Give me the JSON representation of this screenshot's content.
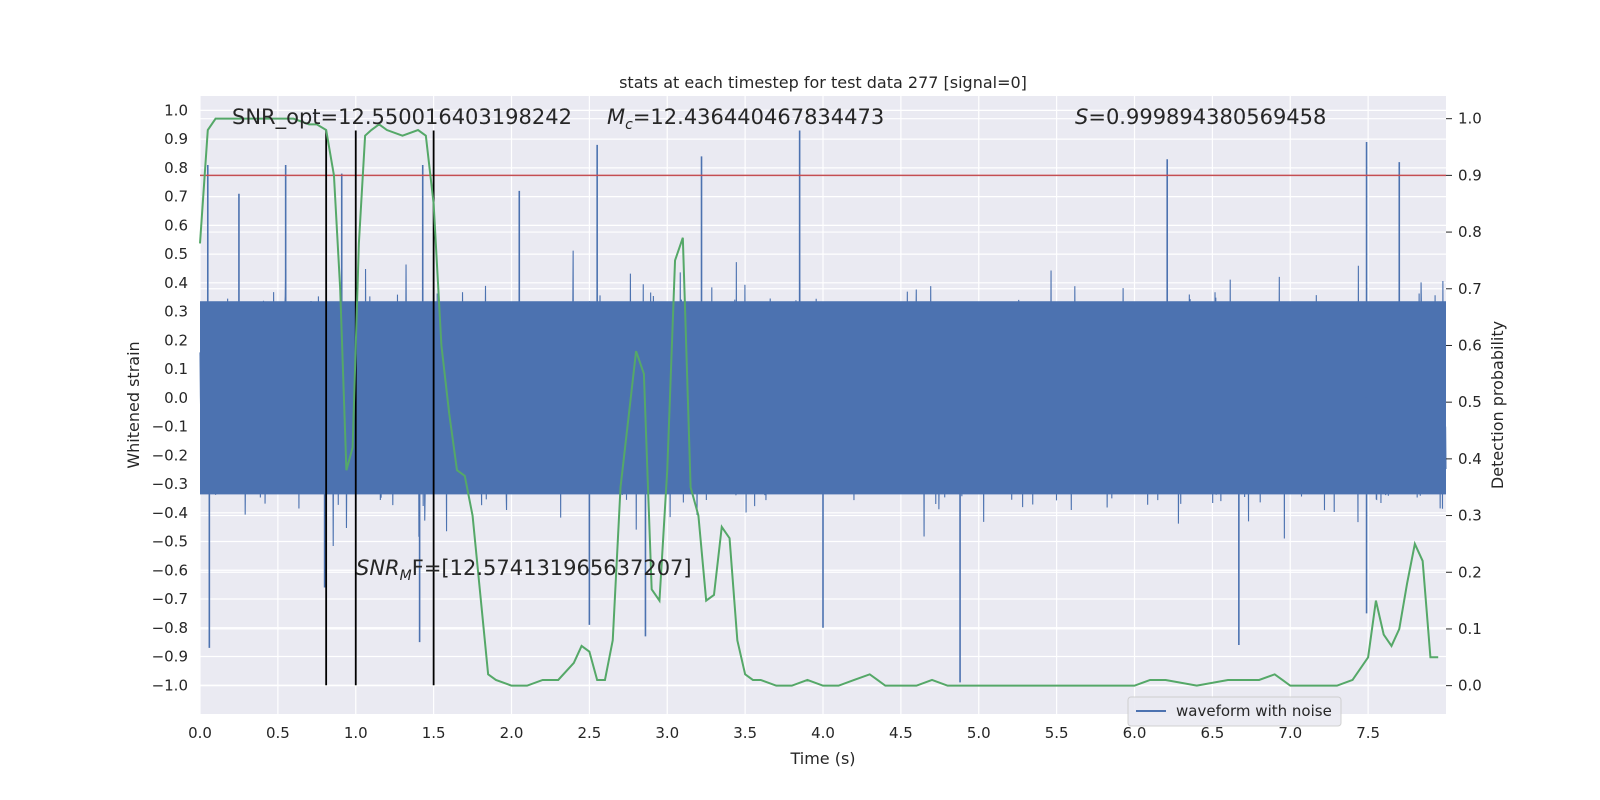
{
  "chart_data": {
    "type": "line",
    "title": "stats at each timestep for test data 277 [signal=0]",
    "xlabel": "Time (s)",
    "ylabel": "Whitened strain",
    "ylabel_right": "Detection probability",
    "xlim": [
      0.0,
      8.0
    ],
    "ylim": [
      -1.1,
      1.05
    ],
    "ylim_right": [
      -0.05,
      1.04
    ],
    "x_ticks": [
      "0.0",
      "0.5",
      "1.0",
      "1.5",
      "2.0",
      "2.5",
      "3.0",
      "3.5",
      "4.0",
      "4.5",
      "5.0",
      "5.5",
      "6.0",
      "6.5",
      "7.0",
      "7.5"
    ],
    "x_tick_values": [
      0.0,
      0.5,
      1.0,
      1.5,
      2.0,
      2.5,
      3.0,
      3.5,
      4.0,
      4.5,
      5.0,
      5.5,
      6.0,
      6.5,
      7.0,
      7.5
    ],
    "y_ticks": [
      "1.0",
      "0.9",
      "0.8",
      "0.7",
      "0.6",
      "0.5",
      "0.4",
      "0.3",
      "0.2",
      "0.1",
      "0.0",
      "−0.1",
      "−0.2",
      "−0.3",
      "−0.4",
      "−0.5",
      "−0.6",
      "−0.7",
      "−0.8",
      "−0.9",
      "−1.0"
    ],
    "y_tick_values": [
      1.0,
      0.9,
      0.8,
      0.7,
      0.6,
      0.5,
      0.4,
      0.3,
      0.2,
      0.1,
      0.0,
      -0.1,
      -0.2,
      -0.3,
      -0.4,
      -0.5,
      -0.6,
      -0.7,
      -0.8,
      -0.9,
      -1.0
    ],
    "y_ticks_right": [
      "1.0",
      "0.9",
      "0.8",
      "0.7",
      "0.6",
      "0.5",
      "0.4",
      "0.3",
      "0.2",
      "0.1",
      "0.0"
    ],
    "y_tick_values_right": [
      1.0,
      0.9,
      0.8,
      0.7,
      0.6,
      0.5,
      0.4,
      0.3,
      0.2,
      0.1,
      0.0
    ],
    "annotations": {
      "snr_opt": "SNR_opt=12.550016403198242",
      "mc_symbol": "M",
      "mc_sub": "c",
      "mc_value": "=12.436440467834473",
      "s_symbol": "S",
      "s_value": "=0.999894380569458",
      "snr_mf_symbol": "SNR",
      "snr_mf_sub": "M",
      "snr_mf_value": "F=[12.574131965637207]"
    },
    "legend": {
      "label": "waveform with noise",
      "position": "lower-right"
    },
    "threshold_right": 0.9,
    "vertical_lines_x": [
      0.81,
      1.0,
      1.5
    ],
    "vertical_lines_range": [
      -1.0,
      0.93
    ],
    "series": [
      {
        "name": "waveform with noise",
        "axis": "left",
        "color": "#4c72b0",
        "style": "dense_noise",
        "typical_amplitude": 0.42,
        "max_amplitude": 0.93,
        "spikes": [
          {
            "x": 0.05,
            "y": 0.81
          },
          {
            "x": 0.06,
            "y": -0.87
          },
          {
            "x": 0.25,
            "y": 0.71
          },
          {
            "x": 0.55,
            "y": 0.81
          },
          {
            "x": 0.8,
            "y": -0.66
          },
          {
            "x": 0.91,
            "y": 0.78
          },
          {
            "x": 1.43,
            "y": 0.81
          },
          {
            "x": 1.41,
            "y": -0.85
          },
          {
            "x": 2.05,
            "y": 0.72
          },
          {
            "x": 2.55,
            "y": 0.88
          },
          {
            "x": 2.5,
            "y": -0.79
          },
          {
            "x": 2.86,
            "y": -0.83
          },
          {
            "x": 3.22,
            "y": 0.84
          },
          {
            "x": 3.85,
            "y": 0.93
          },
          {
            "x": 4.0,
            "y": -0.8
          },
          {
            "x": 4.88,
            "y": -0.99
          },
          {
            "x": 6.21,
            "y": 0.83
          },
          {
            "x": 6.67,
            "y": -0.86
          },
          {
            "x": 7.49,
            "y": 0.89
          },
          {
            "x": 7.7,
            "y": 0.82
          },
          {
            "x": 7.49,
            "y": -0.75
          }
        ]
      },
      {
        "name": "detection probability",
        "axis": "right",
        "color": "#55a868",
        "x": [
          0.0,
          0.05,
          0.1,
          0.2,
          0.4,
          0.6,
          0.7,
          0.75,
          0.81,
          0.86,
          0.9,
          0.94,
          0.98,
          1.02,
          1.06,
          1.1,
          1.15,
          1.2,
          1.3,
          1.4,
          1.45,
          1.5,
          1.55,
          1.6,
          1.65,
          1.7,
          1.75,
          1.8,
          1.85,
          1.9,
          2.0,
          2.1,
          2.2,
          2.3,
          2.4,
          2.45,
          2.5,
          2.55,
          2.6,
          2.65,
          2.7,
          2.8,
          2.85,
          2.9,
          2.95,
          3.0,
          3.05,
          3.1,
          3.15,
          3.2,
          3.25,
          3.3,
          3.35,
          3.4,
          3.45,
          3.5,
          3.55,
          3.6,
          3.7,
          3.8,
          3.9,
          4.0,
          4.1,
          4.2,
          4.3,
          4.35,
          4.4,
          4.5,
          4.6,
          4.7,
          4.8,
          4.9,
          5.0,
          5.2,
          5.5,
          5.8,
          6.0,
          6.1,
          6.2,
          6.4,
          6.6,
          6.8,
          6.9,
          6.95,
          7.0,
          7.1,
          7.3,
          7.4,
          7.5,
          7.55,
          7.6,
          7.65,
          7.7,
          7.75,
          7.8,
          7.85,
          7.9,
          7.95
        ],
        "y": [
          0.78,
          0.98,
          1.0,
          1.0,
          1.0,
          1.0,
          0.99,
          0.99,
          0.98,
          0.9,
          0.7,
          0.38,
          0.42,
          0.78,
          0.97,
          0.98,
          0.99,
          0.98,
          0.97,
          0.98,
          0.97,
          0.85,
          0.6,
          0.48,
          0.38,
          0.37,
          0.3,
          0.16,
          0.02,
          0.01,
          0.0,
          0.0,
          0.01,
          0.01,
          0.04,
          0.07,
          0.06,
          0.01,
          0.01,
          0.08,
          0.35,
          0.59,
          0.55,
          0.17,
          0.15,
          0.38,
          0.75,
          0.79,
          0.35,
          0.3,
          0.15,
          0.16,
          0.28,
          0.26,
          0.08,
          0.02,
          0.01,
          0.01,
          0.0,
          0.0,
          0.01,
          0.0,
          0.0,
          0.01,
          0.02,
          0.01,
          0.0,
          0.0,
          0.0,
          0.01,
          0.0,
          0.0,
          0.0,
          0.0,
          0.0,
          0.0,
          0.0,
          0.01,
          0.01,
          0.0,
          0.01,
          0.01,
          0.02,
          0.01,
          0.0,
          0.0,
          0.0,
          0.01,
          0.05,
          0.15,
          0.09,
          0.07,
          0.1,
          0.18,
          0.25,
          0.22,
          0.05,
          0.05
        ]
      }
    ]
  }
}
